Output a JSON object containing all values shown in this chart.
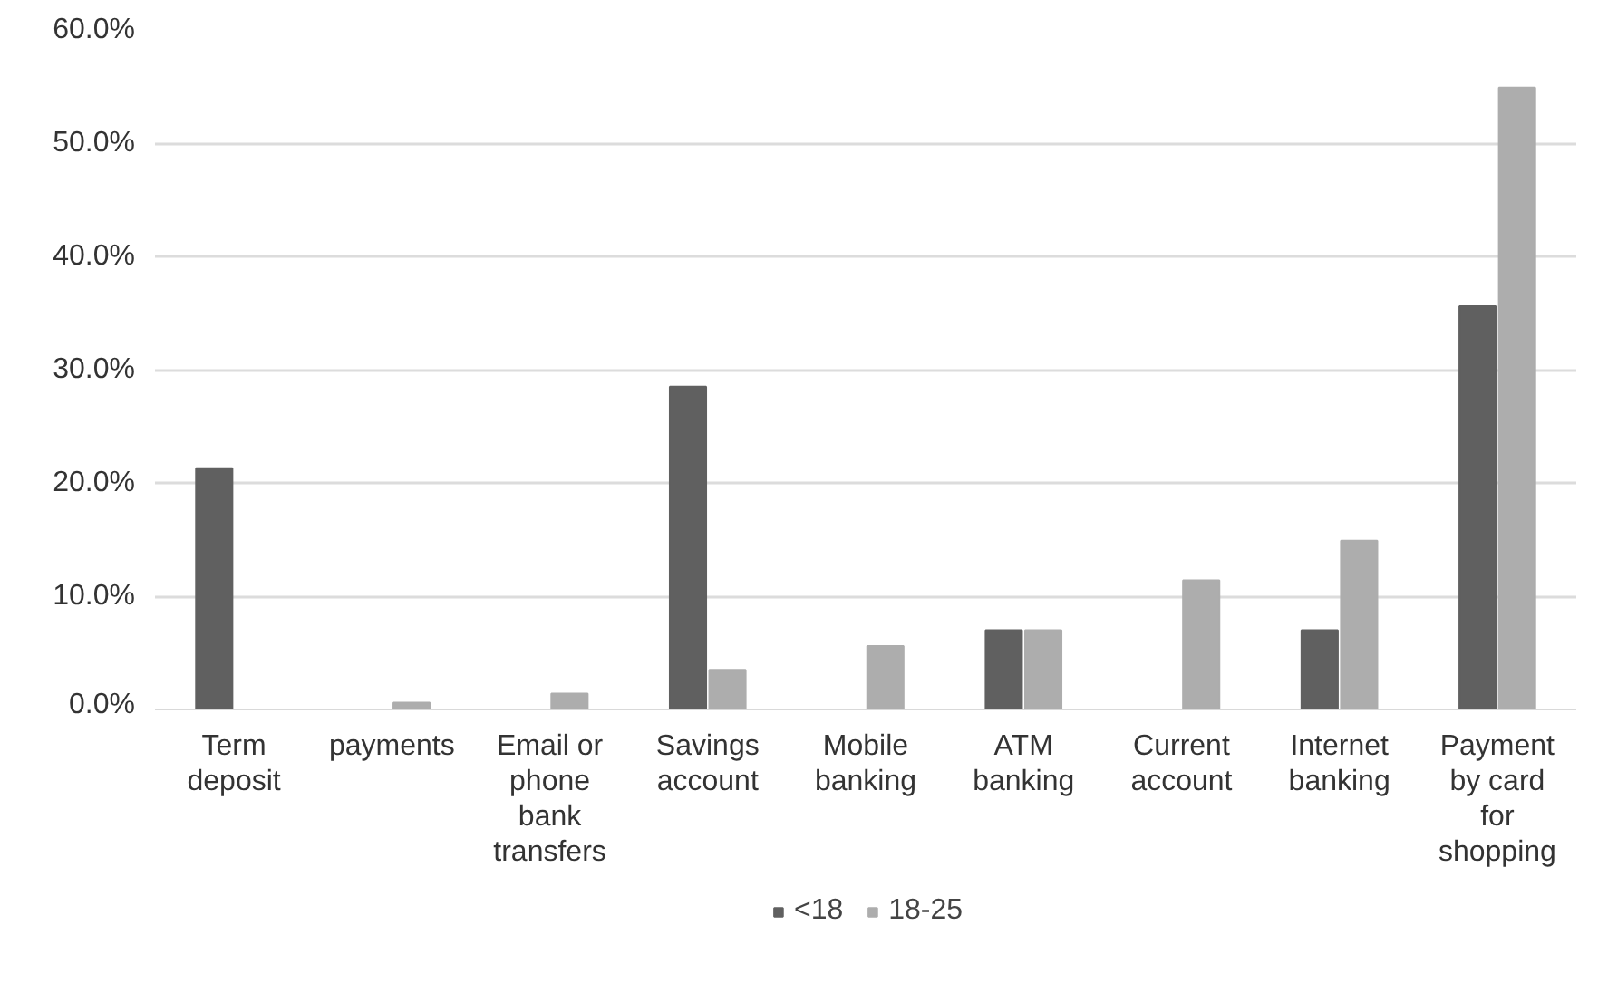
{
  "chart_data": {
    "type": "bar",
    "categories": [
      "Term deposit",
      "payments",
      "Email or phone bank transfers",
      "Savings account",
      "Mobile banking",
      "ATM banking",
      "Current account",
      "Internet banking",
      "Payment by card for shopping"
    ],
    "series": [
      {
        "name": "<18",
        "color": "#606060",
        "values": [
          21.3,
          0,
          0,
          28.5,
          0,
          7.0,
          0,
          7.0,
          35.6
        ]
      },
      {
        "name": "18-25",
        "color": "#adadad",
        "values": [
          0,
          0.6,
          1.4,
          3.5,
          5.6,
          7.0,
          11.4,
          14.9,
          54.9
        ]
      }
    ],
    "ylim": [
      0,
      60
    ],
    "yticks": [
      {
        "value": 0,
        "label": "0.0%"
      },
      {
        "value": 10,
        "label": "10.0%"
      },
      {
        "value": 20,
        "label": "20.0%"
      },
      {
        "value": 30,
        "label": "30.0%"
      },
      {
        "value": 40,
        "label": "40.0%"
      },
      {
        "value": 50,
        "label": "50.0%"
      },
      {
        "value": 60,
        "label": "60.0%"
      }
    ],
    "grid": "y",
    "legend": "bottom"
  }
}
